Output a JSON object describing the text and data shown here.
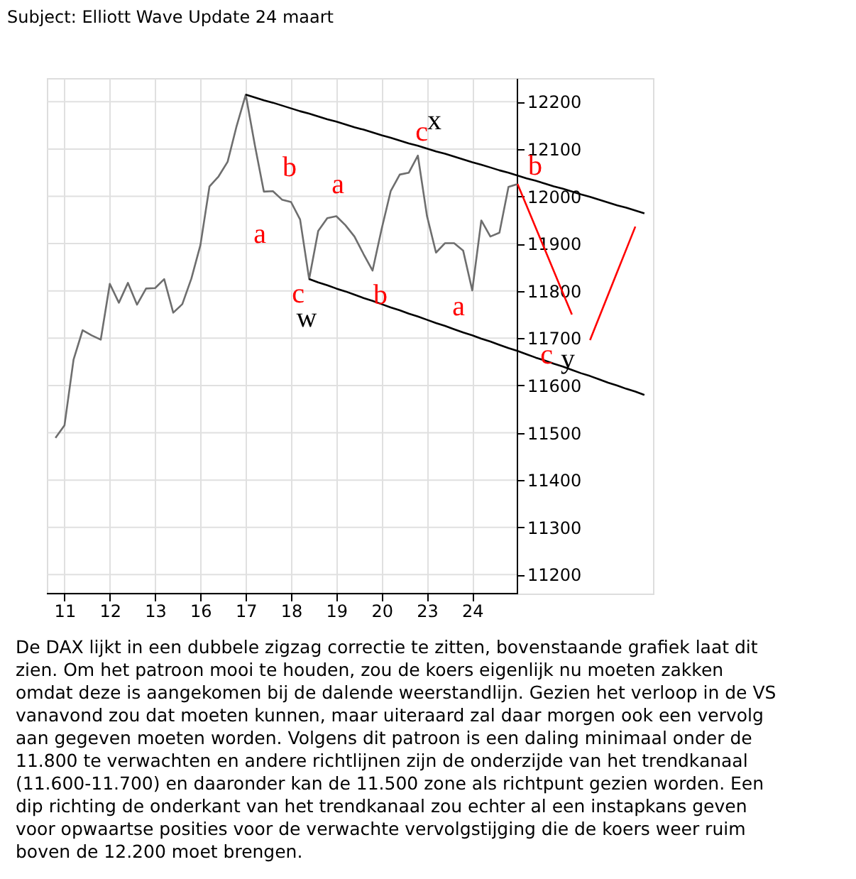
{
  "chart_data": {
    "type": "line",
    "title": "Subject: Elliott Wave Update 24 maart",
    "categories": [
      null,
      "11",
      null,
      null,
      null,
      null,
      "12",
      null,
      null,
      null,
      null,
      "13",
      null,
      null,
      null,
      null,
      "16",
      null,
      null,
      null,
      null,
      "17",
      null,
      null,
      null,
      null,
      "18",
      null,
      null,
      null,
      null,
      "19",
      null,
      null,
      null,
      null,
      "20",
      null,
      null,
      null,
      null,
      "23",
      null,
      null,
      null,
      null,
      "24",
      null,
      null,
      null,
      null,
      null,
      null,
      null,
      null,
      null,
      null,
      null,
      null,
      null,
      null,
      null,
      null,
      null,
      null,
      null
    ],
    "ylim": [
      11160,
      12250
    ],
    "yticks": [
      11200,
      11300,
      11400,
      11500,
      11600,
      11700,
      11800,
      11900,
      12000,
      12100,
      12200
    ],
    "grid": true,
    "series": [
      {
        "color": "#6e6e6e",
        "values": [
          11489,
          11516,
          11655,
          11717,
          11706,
          11697,
          11815,
          11775,
          11817,
          11771,
          11805,
          11806,
          11825,
          11754,
          11772,
          11826,
          11897,
          12021,
          12042,
          12073,
          12149,
          12215,
          12109,
          12010,
          12011,
          11993,
          11988,
          11951,
          11825,
          11927,
          11954,
          11958,
          11939,
          11915,
          11878,
          11843,
          11931,
          12011,
          12046,
          12050,
          12086,
          11959,
          11881,
          11901,
          11901,
          11885,
          11801,
          11949,
          11915,
          11923,
          12020,
          12026,
          null,
          null,
          null,
          null,
          null,
          null,
          null,
          null,
          null,
          null,
          null,
          null,
          null,
          null
        ]
      },
      {
        "color": "#000000",
        "values": [
          null,
          null,
          null,
          null,
          null,
          null,
          null,
          null,
          null,
          null,
          null,
          null,
          null,
          null,
          null,
          null,
          null,
          null,
          null,
          null,
          null,
          12215,
          12209,
          12203,
          12198,
          12192,
          12186,
          12180,
          12175,
          12169,
          12163,
          12158,
          12152,
          12146,
          12141,
          12135,
          12129,
          12124,
          12118,
          12112,
          12107,
          12101,
          12095,
          12090,
          12084,
          12078,
          12072,
          12067,
          12061,
          12055,
          12050,
          12044,
          12038,
          12033,
          12027,
          12021,
          12016,
          12010,
          12004,
          11999,
          11993,
          11987,
          11981,
          11976,
          11970,
          11964
        ]
      },
      {
        "color": "#000000",
        "values": [
          null,
          null,
          null,
          null,
          null,
          null,
          null,
          null,
          null,
          null,
          null,
          null,
          null,
          null,
          null,
          null,
          null,
          null,
          null,
          null,
          null,
          null,
          null,
          null,
          null,
          null,
          null,
          null,
          11825,
          11818,
          11812,
          11805,
          11799,
          11792,
          11785,
          11779,
          11772,
          11765,
          11759,
          11752,
          11746,
          11739,
          11732,
          11726,
          11719,
          11712,
          11706,
          11699,
          11693,
          11686,
          11679,
          11673,
          11666,
          11659,
          11653,
          11646,
          11640,
          11633,
          11626,
          11620,
          11613,
          11606,
          11600,
          11593,
          11587,
          11580
        ]
      },
      {
        "color": "#ff0000",
        "values": [
          null,
          null,
          null,
          null,
          null,
          null,
          null,
          null,
          null,
          null,
          null,
          null,
          null,
          null,
          null,
          null,
          null,
          null,
          null,
          null,
          null,
          null,
          null,
          null,
          null,
          null,
          null,
          null,
          null,
          null,
          null,
          null,
          null,
          null,
          null,
          null,
          null,
          null,
          null,
          null,
          null,
          null,
          null,
          null,
          null,
          null,
          null,
          null,
          null,
          null,
          null,
          12026,
          11980,
          11934,
          11888,
          11842,
          11796,
          11750,
          null,
          null,
          null,
          null,
          null,
          null,
          null,
          null
        ]
      },
      {
        "color": "#ff0000",
        "values": [
          null,
          null,
          null,
          null,
          null,
          null,
          null,
          null,
          null,
          null,
          null,
          null,
          null,
          null,
          null,
          null,
          null,
          null,
          null,
          null,
          null,
          null,
          null,
          null,
          null,
          null,
          null,
          null,
          null,
          null,
          null,
          null,
          null,
          null,
          null,
          null,
          null,
          null,
          null,
          null,
          null,
          null,
          null,
          null,
          null,
          null,
          null,
          null,
          null,
          null,
          null,
          null,
          null,
          null,
          null,
          null,
          null,
          null,
          null,
          11696,
          11744,
          11792,
          11840,
          11888,
          11936,
          null
        ]
      }
    ],
    "annotations": [
      "a",
      "b",
      "c",
      "w",
      "a",
      "b",
      "c",
      "x",
      "a",
      "b",
      "c",
      "y",
      "De DAX lijkt in een dubbele zigzag correctie te zitten, bovenstaande grafiek laat dit\nzien. Om het patroon mooi te houden, zou de koers eigenlijk nu moeten zakken\nomdat deze is aangekomen bij de dalende weerstandlijn. Gezien het verloop in de VS\nvanavond zou dat moeten kunnen, maar uiteraard zal daar morgen ook een vervolg\naan gegeven moeten worden. Volgens dit patroon is een daling minimaal onder de\n11.800 te verwachten en andere richtlijnen zijn de onderzijde van het trendkanaal\n(11.600-11.700) en daaronder kan de 11.500 zone als richtpunt gezien worden. Een\ndip richting de onderkant van het trendkanaal zou echter al een instapkans geven\nvoor opwaartse posities voor de verwachte vervolgstijging die de koers weer ruim\nboven de 12.200 moet brengen."
    ]
  }
}
